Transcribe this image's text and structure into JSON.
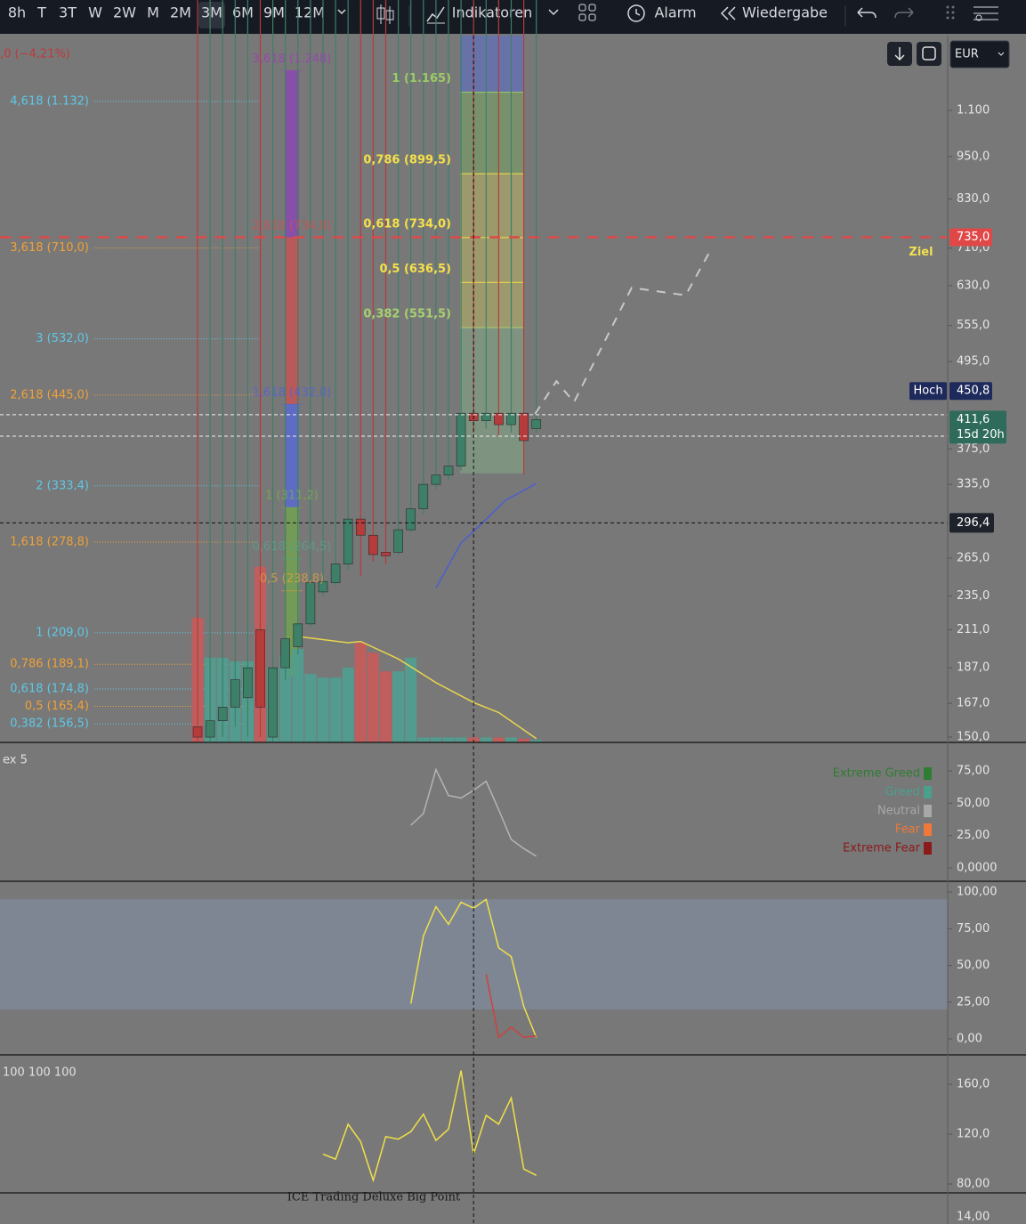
{
  "toolbar": {
    "intervals": [
      "8h",
      "T",
      "3T",
      "W",
      "2W",
      "M",
      "2M",
      "3M",
      "6M",
      "9M",
      "12M"
    ],
    "active": "3M",
    "indicators": "Indikatoren",
    "alarm": "Alarm",
    "replay": "Wiedergabe"
  },
  "currency": "EUR",
  "header_change": ",0 (−4,21%)",
  "bottom_axis_label": "14,00",
  "chart_data": [
    {
      "type": "candlestick",
      "log_scale": true,
      "ylim": [
        147.5,
        1395
      ],
      "yticks": [
        {
          "value": 1100,
          "label": "1.100"
        },
        {
          "value": 950,
          "label": "950,0"
        },
        {
          "value": 830,
          "label": "830,0"
        },
        {
          "value": 710,
          "label": "710,0"
        },
        {
          "value": 630,
          "label": "630,0"
        },
        {
          "value": 555,
          "label": "555,0"
        },
        {
          "value": 495,
          "label": "495,0"
        },
        {
          "value": 375,
          "label": "375,0"
        },
        {
          "value": 335,
          "label": "335,0"
        },
        {
          "value": 265,
          "label": "265,0"
        },
        {
          "value": 235,
          "label": "235,0"
        },
        {
          "value": 211,
          "label": "211,0"
        },
        {
          "value": 187,
          "label": "187,0"
        },
        {
          "value": 167,
          "label": "167,0"
        },
        {
          "value": 150,
          "label": "150,0"
        }
      ],
      "up_color": "#3e7f68",
      "down_color": "#b63c3c",
      "open": [
        155,
        150,
        158,
        165,
        170,
        211,
        150,
        187,
        200,
        215,
        238,
        245,
        260,
        300,
        285,
        270,
        270,
        290,
        310,
        335,
        345,
        355,
        420,
        410,
        420,
        405,
        420,
        400
      ],
      "high": {
        "tag": "Hoch",
        "value": 450.8,
        "label": "450,8",
        "color": "#1f2a5c"
      },
      "low": [
        148,
        148,
        150,
        155,
        150,
        150,
        148,
        180,
        195,
        213,
        235,
        243,
        255,
        250,
        262,
        260,
        268,
        288,
        305,
        330,
        340,
        350,
        395,
        400,
        390,
        395,
        345,
        395
      ],
      "close": [
        150,
        158,
        165,
        180,
        187,
        165,
        187,
        205,
        215,
        245,
        246,
        260,
        300,
        285,
        268,
        267,
        290,
        310,
        335,
        345,
        355,
        420,
        410,
        420,
        405,
        420,
        385,
        411.6
      ],
      "volume": {
        "vlim": [
          0,
          150
        ],
        "values": [
          100,
          68,
          68,
          65,
          65,
          141,
          60,
          70,
          75,
          55,
          52,
          52,
          60,
          80,
          72,
          57,
          57,
          68,
          4,
          4,
          4,
          4,
          4,
          4,
          4,
          4,
          3,
          2
        ]
      },
      "volume_ma": {
        "color": "#e8d44d",
        "x": [
          8,
          12,
          13,
          16,
          19,
          22,
          24,
          27
        ],
        "values": [
          85,
          80,
          81,
          67,
          48,
          32,
          24,
          3
        ]
      },
      "overlays": [
        {
          "color": "#c8c8c8",
          "dashed": true,
          "x": [
            26.9,
            28.6,
            30,
            34.6,
            38.9,
            41
          ],
          "values": [
            419,
            465,
            435,
            626,
            611,
            711
          ]
        },
        {
          "color": "#4a5fd0",
          "dashed": false,
          "x": [
            19,
            21,
            22.5,
            24.5,
            27
          ],
          "values": [
            241,
            278,
            294,
            318,
            336
          ]
        }
      ],
      "ref_lines": [
        418,
        390.5
      ],
      "fib_left": [
        {
          "value": 1132,
          "label": "4,618 (1.132)",
          "color": "#5ec8e8"
        },
        {
          "value": 710,
          "label": "3,618 (710,0)",
          "color": "#f0a038"
        },
        {
          "value": 532,
          "label": "3 (532,0)",
          "color": "#5ec8e8"
        },
        {
          "value": 445,
          "label": "2,618 (445,0)",
          "color": "#f0a038"
        },
        {
          "value": 333.4,
          "label": "2 (333,4)",
          "color": "#5ec8e8"
        },
        {
          "value": 278.8,
          "label": "1,618 (278,8)",
          "color": "#f0a038"
        },
        {
          "value": 209,
          "label": "1 (209,0)",
          "color": "#5ec8e8"
        },
        {
          "value": 189.1,
          "label": "0,786 (189,1)",
          "color": "#f0a038"
        },
        {
          "value": 174.8,
          "label": "0,618 (174,8)",
          "color": "#5ec8e8"
        },
        {
          "value": 165.4,
          "label": "0,5 (165,4)",
          "color": "#f0a038"
        },
        {
          "value": 156.5,
          "label": "0,382 (156,5)",
          "color": "#5ec8e8"
        }
      ],
      "fib_mid": {
        "levels": [
          {
            "value": 1248,
            "label": "3,618 (1.248)",
            "color": "#9a3fb8"
          },
          {
            "value": 734,
            "label": "2,618 (734,0)",
            "color": "#d05050"
          },
          {
            "value": 432,
            "label": "1,618 (432,0)",
            "color": "#4f62d8"
          },
          {
            "value": 311.2,
            "label": "1 (311,2)",
            "color": "#78b04a"
          },
          {
            "value": 264.5,
            "label": "0,618 (264,5)",
            "color": "#5aa08a"
          },
          {
            "value": 238.8,
            "label": "0,5 (238,8)",
            "color": "#e0a040"
          }
        ],
        "fills": [
          {
            "from": 734,
            "to": 1248,
            "color": "#8a48b0"
          },
          {
            "from": 432,
            "to": 734,
            "color": "#c55454"
          },
          {
            "from": 311.2,
            "to": 432,
            "color": "#5a6ad0"
          },
          {
            "from": 182,
            "to": 311.2,
            "color": "#72a050"
          }
        ]
      },
      "fib_right": {
        "levels": [
          {
            "value": 1165,
            "label": "1 (1.165)",
            "color": "#9ccc65"
          },
          {
            "value": 899.5,
            "label": "0,786 (899,5)",
            "color": "#f5e04a"
          },
          {
            "value": 734,
            "label": "0,618 (734,0)",
            "color": "#f5e04a"
          },
          {
            "value": 636.5,
            "label": "0,5 (636,5)",
            "color": "#f5e04a"
          },
          {
            "value": 551.5,
            "label": "0,382 (551,5)",
            "color": "#a8d070"
          }
        ],
        "fills": [
          {
            "from": 1165,
            "to": 1395,
            "color": "#6070b8"
          },
          {
            "from": 899.5,
            "to": 1165,
            "color": "#789a68"
          },
          {
            "from": 551.5,
            "to": 899.5,
            "color": "#a8a46a"
          },
          {
            "from": 347,
            "to": 551.5,
            "color": "#809e84"
          }
        ]
      },
      "alert_line": {
        "value": 735,
        "label": "735,0",
        "color": "#e04848"
      },
      "last": {
        "value": 411.6,
        "label": "411,6",
        "countdown": "15d 20h",
        "color": "#2e6b5a"
      },
      "crosshair": {
        "x": 22,
        "value": 296.4,
        "label": "296,4"
      },
      "annotation": "Ziel"
    },
    {
      "type": "line",
      "title": "ex 5",
      "ylim": [
        -10.3,
        97
      ],
      "yticks": [
        {
          "value": 75,
          "label": "75,00"
        },
        {
          "value": 50,
          "label": "50,00"
        },
        {
          "value": 25,
          "label": "25,00"
        },
        {
          "value": 0,
          "label": "0,0000"
        }
      ],
      "series": [
        {
          "color": "#b4b4b4",
          "x": [
            17,
            18,
            19,
            20,
            21,
            22,
            23,
            24,
            25,
            26,
            27
          ],
          "values": [
            33,
            42,
            76,
            56,
            54,
            60,
            67,
            45,
            22,
            15,
            9
          ]
        }
      ],
      "legend": [
        {
          "label": "Extreme Greed",
          "color": "#2e7d32"
        },
        {
          "label": "Greed",
          "color": "#4aa08c"
        },
        {
          "label": "Neutral",
          "color": "#a8a8a8"
        },
        {
          "label": "Fear",
          "color": "#f07838"
        },
        {
          "label": "Extreme Fear",
          "color": "#8b1a1a"
        }
      ]
    },
    {
      "type": "line",
      "ylim": [
        -10.9,
        107.3
      ],
      "band": [
        20,
        95
      ],
      "band_color": "#7f8a9a",
      "yticks": [
        {
          "value": 100,
          "label": "100,00"
        },
        {
          "value": 75,
          "label": "75,00"
        },
        {
          "value": 50,
          "label": "50,00"
        },
        {
          "value": 25,
          "label": "25,00"
        },
        {
          "value": 0,
          "label": "0,00"
        }
      ],
      "series": [
        {
          "color": "#f0e048",
          "x": [
            17,
            18,
            19,
            20,
            21,
            22,
            23,
            24,
            25,
            26,
            27
          ],
          "values": [
            24,
            70,
            90,
            78,
            93,
            89,
            95,
            62,
            56,
            22,
            1
          ]
        },
        {
          "color": "#d04040",
          "x": [
            23,
            24,
            25,
            26,
            27
          ],
          "values": [
            44,
            1,
            8,
            1,
            2
          ]
        }
      ]
    },
    {
      "type": "line",
      "title": "100 100 100",
      "footer": "ICE Trading Deluxe Big Point",
      "ylim": [
        72.9,
        183.6
      ],
      "yticks": [
        {
          "value": 160,
          "label": "160,0"
        },
        {
          "value": 120,
          "label": "120,0"
        },
        {
          "value": 80,
          "label": "80,00"
        }
      ],
      "series": [
        {
          "color": "#f0e048",
          "x": [
            10,
            11,
            12,
            13,
            14,
            15,
            16,
            17,
            18,
            19,
            20,
            21,
            22,
            23,
            24,
            25,
            26,
            27
          ],
          "values": [
            104,
            100,
            128,
            114,
            83,
            118,
            116,
            122,
            136,
            115,
            124,
            171,
            104,
            135,
            128,
            149,
            92,
            87
          ]
        }
      ]
    }
  ]
}
